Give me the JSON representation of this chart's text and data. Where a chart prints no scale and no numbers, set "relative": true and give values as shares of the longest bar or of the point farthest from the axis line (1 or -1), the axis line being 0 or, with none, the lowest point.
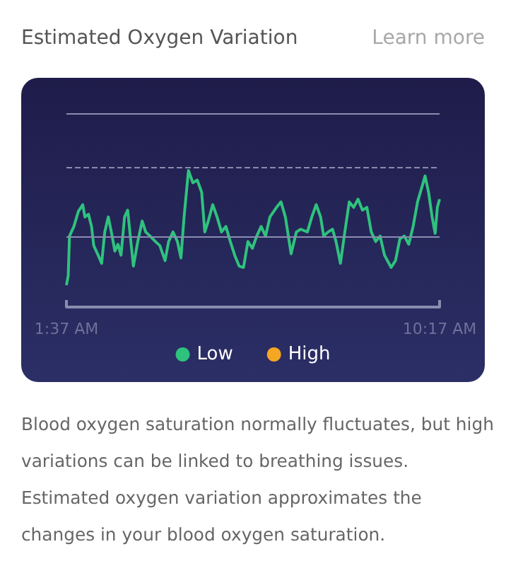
{
  "chart_data": {
    "type": "line",
    "title": "Estimated Oxygen Variation",
    "annotations": [
      "Learn more",
      "Blood oxygen saturation normally fluctuates, but high variations can be linked to breathing issues. Estimated oxygen variation approximates the changes in your blood oxygen saturation."
    ],
    "relative": true,
    "xlim": [
      1.6167,
      10.2833
    ],
    "xticks": [
      {
        "value": 1.6167,
        "label": "1:37 AM"
      },
      {
        "value": 10.2833,
        "label": "10:17 AM"
      }
    ],
    "grid": false,
    "legend": "bottom",
    "marker": "none",
    "line_style": "solid",
    "ref_lines": [
      {
        "axis": "y",
        "value": 0.52,
        "color": "#8a8cb0",
        "line_style": "solid"
      },
      {
        "axis": "y",
        "value": 1.02,
        "color": "#8a8cb0",
        "line_style": "dashed"
      },
      {
        "axis": "y",
        "value": 1.42,
        "color": "#8a8cb0",
        "line_style": "solid"
      }
    ],
    "series": [
      {
        "name": "Low",
        "color": "#2fc27e",
        "x": [
          1.617,
          1.658,
          1.688,
          1.79,
          1.893,
          1.995,
          2.046,
          2.128,
          2.2,
          2.251,
          2.353,
          2.435,
          2.507,
          2.589,
          2.66,
          2.742,
          2.814,
          2.885,
          2.967,
          3.039,
          3.1,
          3.172,
          3.274,
          3.376,
          3.458,
          3.56,
          3.683,
          3.786,
          3.908,
          3.99,
          4.092,
          4.195,
          4.277,
          4.349,
          4.451,
          4.553,
          4.656,
          4.758,
          4.83,
          4.911,
          5.014,
          5.116,
          5.218,
          5.321,
          5.423,
          5.525,
          5.628,
          5.73,
          5.832,
          5.935,
          6.037,
          6.139,
          6.242,
          6.344,
          6.497,
          6.6,
          6.702,
          6.835,
          6.958,
          7.06,
          7.213,
          7.316,
          7.418,
          7.52,
          7.592,
          7.694,
          7.797,
          7.878,
          7.981,
          8.083,
          8.186,
          8.288,
          8.39,
          8.492,
          8.595,
          8.697,
          8.8,
          8.902,
          9.004,
          9.107,
          9.158,
          9.26,
          9.362,
          9.465,
          9.567,
          9.669,
          9.772,
          9.874,
          9.946,
          10.028,
          10.11,
          10.181,
          10.232,
          10.283
        ],
        "values": [
          0.16,
          0.23,
          0.52,
          0.59,
          0.7,
          0.75,
          0.66,
          0.68,
          0.59,
          0.45,
          0.38,
          0.32,
          0.55,
          0.66,
          0.55,
          0.41,
          0.46,
          0.38,
          0.66,
          0.71,
          0.52,
          0.3,
          0.48,
          0.63,
          0.55,
          0.52,
          0.48,
          0.45,
          0.34,
          0.48,
          0.55,
          0.48,
          0.36,
          0.66,
          1.0,
          0.91,
          0.93,
          0.84,
          0.55,
          0.63,
          0.75,
          0.66,
          0.55,
          0.59,
          0.48,
          0.38,
          0.3,
          0.29,
          0.48,
          0.43,
          0.52,
          0.59,
          0.52,
          0.66,
          0.73,
          0.77,
          0.66,
          0.39,
          0.55,
          0.57,
          0.55,
          0.66,
          0.75,
          0.66,
          0.52,
          0.55,
          0.57,
          0.48,
          0.32,
          0.55,
          0.77,
          0.73,
          0.79,
          0.71,
          0.73,
          0.55,
          0.48,
          0.52,
          0.38,
          0.32,
          0.29,
          0.34,
          0.5,
          0.52,
          0.46,
          0.59,
          0.77,
          0.88,
          0.96,
          0.84,
          0.66,
          0.54,
          0.73,
          0.79
        ]
      },
      {
        "name": "High",
        "color": "#f5a623"
      }
    ]
  }
}
